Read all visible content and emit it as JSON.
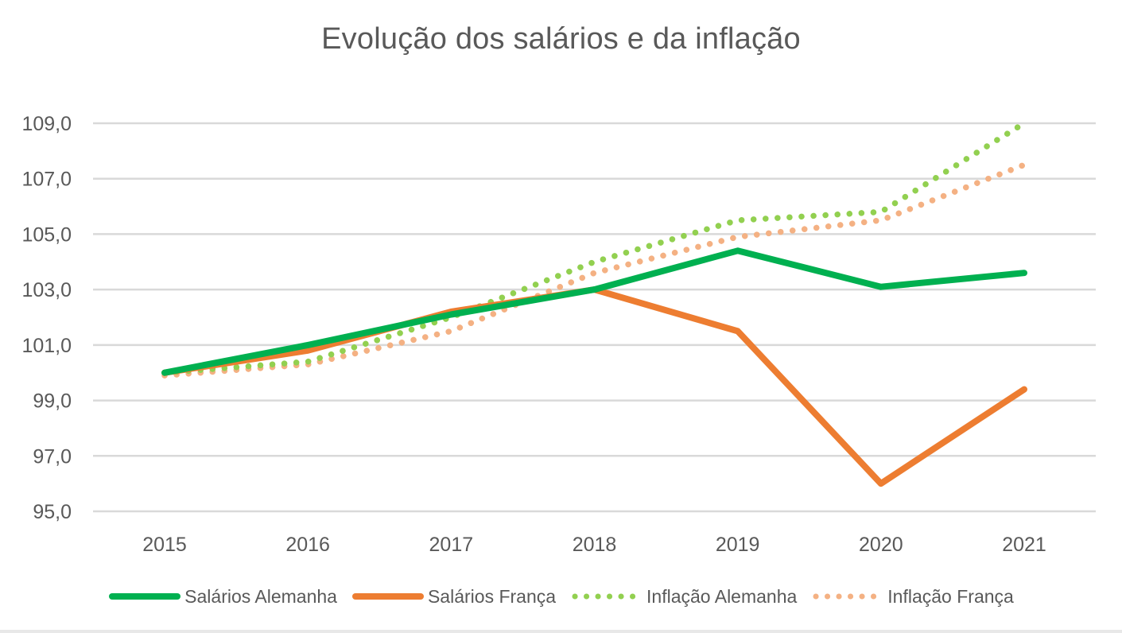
{
  "chart_data": {
    "type": "line",
    "title": "Evolução dos salários e da inflação",
    "xlabel": "",
    "ylabel": "",
    "categories": [
      "2015",
      "2016",
      "2017",
      "2018",
      "2019",
      "2020",
      "2021"
    ],
    "ylim": [
      95,
      109
    ],
    "yticks": [
      "109,0",
      "107,0",
      "105,0",
      "103,0",
      "101,0",
      "99,0",
      "97,0",
      "95,0"
    ],
    "ytick_values": [
      109,
      107,
      105,
      103,
      101,
      99,
      97,
      95
    ],
    "grid": true,
    "legend_position": "bottom",
    "series": [
      {
        "name": "Salários Alemanha",
        "style": "solid",
        "color": "#00B050",
        "values": [
          100.0,
          101.0,
          102.1,
          103.0,
          104.4,
          103.1,
          103.6
        ]
      },
      {
        "name": "Salários França",
        "style": "solid",
        "color": "#ED7D31",
        "values": [
          100.0,
          100.8,
          102.2,
          103.0,
          101.5,
          96.0,
          99.4
        ]
      },
      {
        "name": "Inflação Alemanha",
        "style": "dotted",
        "color": "#92D050",
        "values": [
          100.0,
          100.4,
          102.0,
          104.0,
          105.5,
          105.8,
          109.0
        ]
      },
      {
        "name": "Inflação França",
        "style": "dotted",
        "color": "#F4B183",
        "values": [
          99.9,
          100.3,
          101.5,
          103.6,
          104.9,
          105.5,
          107.5
        ]
      }
    ]
  }
}
